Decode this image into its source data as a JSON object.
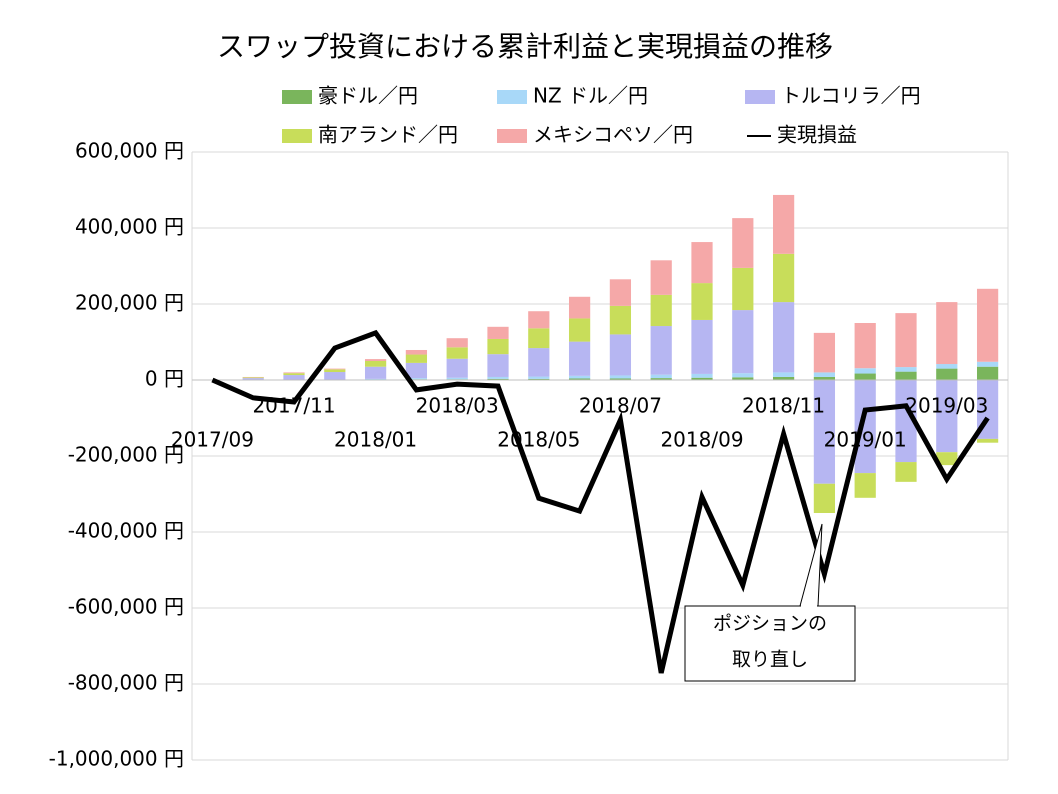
{
  "chart_data": {
    "type": "stacked-bar-line",
    "title": "スワップ投資における累計利益と実現損益の推移",
    "categories": [
      "2017/09",
      null,
      "2017/11",
      null,
      "2018/01",
      null,
      "2018/03",
      null,
      "2018/05",
      null,
      "2018/07",
      null,
      "2018/09",
      null,
      "2018/11",
      null,
      "2019/01",
      null,
      "2019/03",
      null
    ],
    "series": [
      {
        "name": "豪ドル／円",
        "color": "#7ab55c",
        "values": [
          0,
          0,
          0,
          0,
          1000,
          2000,
          2000,
          3000,
          3000,
          4000,
          4000,
          5000,
          6000,
          7000,
          8000,
          8000,
          17000,
          22000,
          30000,
          35000
        ]
      },
      {
        "name": "NZ ドル／円",
        "color": "#a8d8f8",
        "values": [
          0,
          1000,
          1000,
          1000,
          2000,
          3000,
          4000,
          5000,
          6000,
          7000,
          8000,
          9000,
          10000,
          11000,
          12000,
          12000,
          14000,
          12000,
          12000,
          13000
        ]
      },
      {
        "name": "トルコリラ／円",
        "color": "#b6b6f2",
        "values": [
          0,
          4000,
          12000,
          20000,
          32000,
          40000,
          50000,
          60000,
          75000,
          90000,
          108000,
          128000,
          142000,
          166000,
          185000,
          -273000,
          -245000,
          -216000,
          -190000,
          -155000
        ]
      },
      {
        "name": "南アランド／円",
        "color": "#c8dd5a",
        "values": [
          0,
          2000,
          5000,
          7000,
          15000,
          22000,
          30000,
          40000,
          52000,
          61000,
          75000,
          82000,
          97000,
          111000,
          127000,
          -77000,
          -65000,
          -52000,
          -34000,
          -10000
        ]
      },
      {
        "name": "メキシコペソ／円",
        "color": "#f5a8a8",
        "values": [
          0,
          1000,
          2000,
          2000,
          5000,
          12000,
          24000,
          32000,
          45000,
          57000,
          70000,
          91000,
          108000,
          131000,
          155000,
          104000,
          119000,
          142000,
          163000,
          192000
        ]
      },
      {
        "name": "実現損益",
        "color": "#000000",
        "kind": "line",
        "values": [
          0,
          -47000,
          -58000,
          84000,
          124000,
          -26000,
          -11000,
          -16000,
          -311000,
          -345000,
          -105000,
          -771000,
          -308000,
          -540000,
          -142000,
          -511000,
          -79000,
          -68000,
          -261000,
          -100000
        ]
      }
    ],
    "ylim": [
      -1000000,
      600000
    ],
    "yticks": [
      {
        "value": -1000000,
        "label": "-1,000,000 円"
      },
      {
        "value": -800000,
        "label": "-800,000 円"
      },
      {
        "value": -600000,
        "label": "-600,000 円"
      },
      {
        "value": -400000,
        "label": "-400,000 円"
      },
      {
        "value": -200000,
        "label": "-200,000 円"
      },
      {
        "value": 0,
        "label": "0 円"
      },
      {
        "value": 200000,
        "label": "200,000 円"
      },
      {
        "value": 400000,
        "label": "400,000 円"
      },
      {
        "value": 600000,
        "label": "600,000 円"
      }
    ],
    "grid": true,
    "annotation": [
      "ポジションの",
      "取り直し"
    ]
  }
}
